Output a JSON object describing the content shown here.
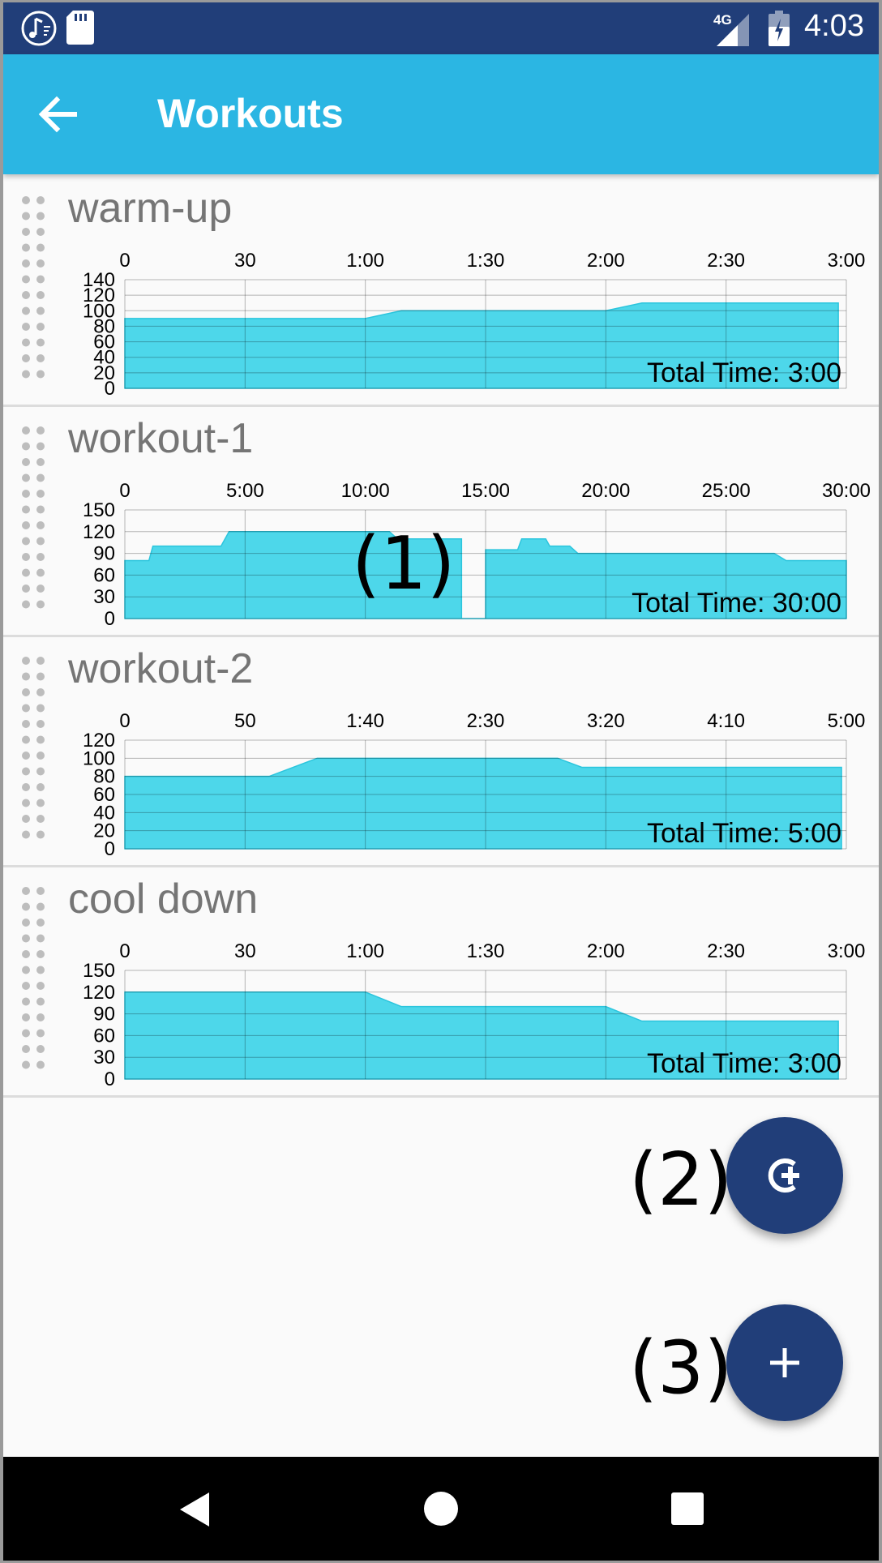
{
  "status_bar": {
    "time": "4:03",
    "network": "4G",
    "icons": [
      "music-sync-icon",
      "sd-card-icon",
      "signal-icon",
      "battery-charging-icon"
    ]
  },
  "app_bar": {
    "title": "Workouts",
    "back_icon": "arrow-left-icon"
  },
  "workouts": [
    {
      "name": "warm-up",
      "total_time": "Total Time: 3:00",
      "chart_data": {
        "type": "area",
        "x_tick_labels": [
          "0",
          "30",
          "1:00",
          "1:30",
          "2:00",
          "2:30",
          "3:00"
        ],
        "y_tick_labels": [
          "0",
          "20",
          "40",
          "60",
          "80",
          "100",
          "120",
          "140"
        ],
        "xlim_seconds": [
          0,
          180
        ],
        "ylim": [
          0,
          140
        ],
        "x_seconds": [
          0,
          60,
          69,
          120,
          129,
          178
        ],
        "values": [
          90,
          90,
          100,
          100,
          110,
          110
        ],
        "color": "#4dd7ea"
      }
    },
    {
      "name": "workout-1",
      "total_time": "Total Time: 30:00",
      "chart_data": {
        "type": "area",
        "x_tick_labels": [
          "0",
          "5:00",
          "10:00",
          "15:00",
          "20:00",
          "25:00",
          "30:00"
        ],
        "y_tick_labels": [
          "0",
          "30",
          "60",
          "90",
          "120",
          "150"
        ],
        "xlim_seconds": [
          0,
          1800
        ],
        "ylim": [
          0,
          150
        ],
        "x_seconds": [
          0,
          60,
          70,
          240,
          260,
          660,
          680,
          840,
          840,
          900,
          900,
          980,
          990,
          1050,
          1060,
          1110,
          1130,
          1620,
          1650,
          1800
        ],
        "values": [
          80,
          80,
          100,
          100,
          120,
          120,
          110,
          110,
          0,
          0,
          95,
          95,
          110,
          110,
          100,
          100,
          90,
          90,
          80,
          80
        ],
        "color": "#4dd7ea"
      }
    },
    {
      "name": "workout-2",
      "total_time": "Total Time: 5:00",
      "chart_data": {
        "type": "area",
        "x_tick_labels": [
          "0",
          "50",
          "1:40",
          "2:30",
          "3:20",
          "4:10",
          "5:00"
        ],
        "y_tick_labels": [
          "0",
          "20",
          "40",
          "60",
          "80",
          "100",
          "120"
        ],
        "xlim_seconds": [
          0,
          300
        ],
        "ylim": [
          0,
          120
        ],
        "x_seconds": [
          0,
          60,
          80,
          180,
          190,
          298
        ],
        "values": [
          80,
          80,
          100,
          100,
          90,
          90
        ],
        "color": "#4dd7ea"
      }
    },
    {
      "name": "cool down",
      "total_time": "Total Time: 3:00",
      "chart_data": {
        "type": "area",
        "x_tick_labels": [
          "0",
          "30",
          "1:00",
          "1:30",
          "2:00",
          "2:30",
          "3:00"
        ],
        "y_tick_labels": [
          "0",
          "30",
          "60",
          "90",
          "120",
          "150"
        ],
        "xlim_seconds": [
          0,
          180
        ],
        "ylim": [
          0,
          150
        ],
        "x_seconds": [
          0,
          60,
          69,
          120,
          129,
          178
        ],
        "values": [
          120,
          120,
          100,
          100,
          80,
          80
        ],
        "color": "#4dd7ea"
      }
    }
  ],
  "callouts": {
    "one": "(1)",
    "two": "(2)",
    "three": "(3)"
  },
  "fabs": {
    "add_existing_icon": "circle-plus-icon",
    "add_new_icon": "plus-icon",
    "color": "#213e79"
  },
  "nav_bar": {
    "icons": [
      "nav-back-icon",
      "nav-home-icon",
      "nav-recents-icon"
    ]
  }
}
